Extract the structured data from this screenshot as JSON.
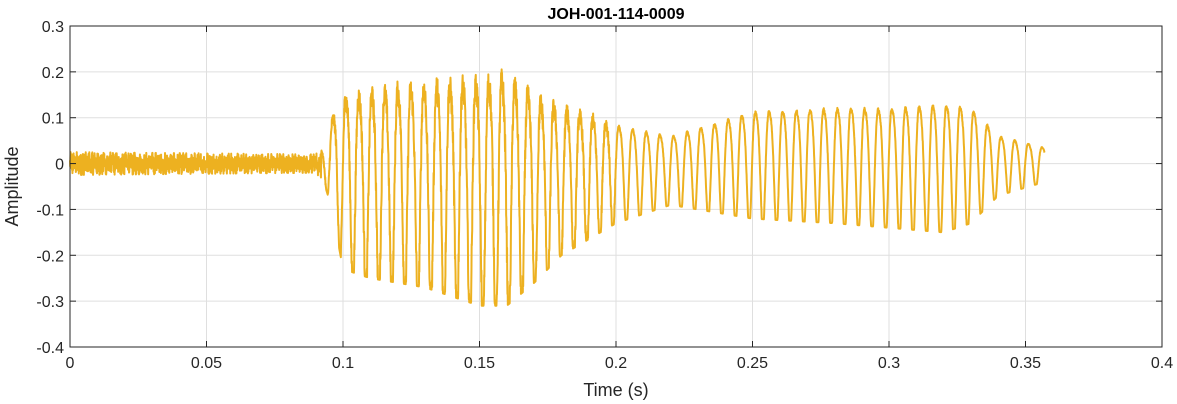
{
  "chart_data": {
    "type": "line",
    "title": "JOH-001-114-0009",
    "xlabel": "Time (s)",
    "ylabel": "Amplitude",
    "xlim": [
      0,
      0.4
    ],
    "ylim": [
      -0.4,
      0.3
    ],
    "xticks": [
      "0",
      "0.05",
      "0.1",
      "0.15",
      "0.2",
      "0.25",
      "0.3",
      "0.35",
      "0.4"
    ],
    "yticks": [
      "-0.4",
      "-0.3",
      "-0.2",
      "-0.1",
      "0",
      "0.1",
      "0.2",
      "0.3"
    ],
    "grid": true,
    "series": [
      {
        "color": "#EDB120",
        "x_start": 0.0,
        "x_end": 0.357,
        "envelope_x": [
          0,
          0.09,
          0.093,
          0.096,
          0.1,
          0.11,
          0.13,
          0.15,
          0.16,
          0.17,
          0.18,
          0.2,
          0.22,
          0.25,
          0.28,
          0.3,
          0.32,
          0.33,
          0.34,
          0.357
        ],
        "upper": [
          0.025,
          0.02,
          0.04,
          0.11,
          0.17,
          0.18,
          0.2,
          0.21,
          0.22,
          0.17,
          0.14,
          0.1,
          0.07,
          0.13,
          0.14,
          0.14,
          0.15,
          0.14,
          0.07,
          0.04
        ],
        "lower": [
          -0.025,
          -0.02,
          -0.04,
          -0.1,
          -0.23,
          -0.25,
          -0.27,
          -0.31,
          -0.31,
          -0.26,
          -0.2,
          -0.13,
          -0.09,
          -0.12,
          -0.13,
          -0.14,
          -0.15,
          -0.13,
          -0.07,
          -0.04
        ]
      }
    ]
  }
}
